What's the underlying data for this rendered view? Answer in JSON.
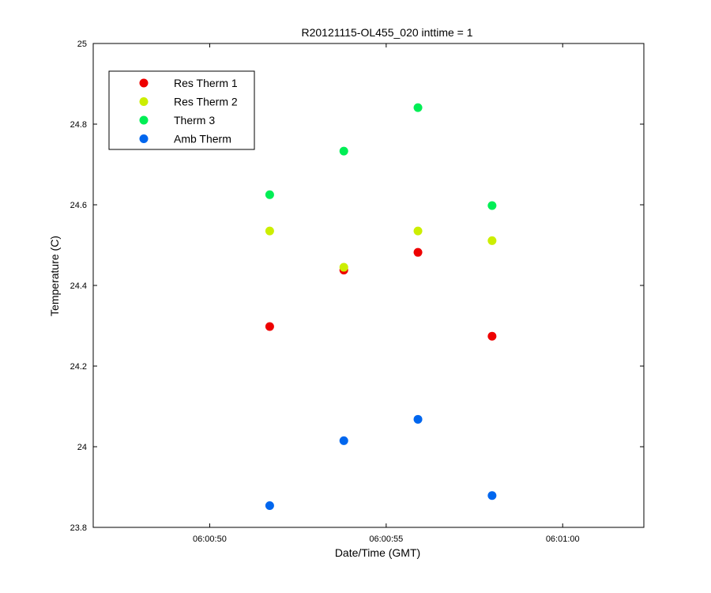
{
  "chart_data": {
    "type": "scatter",
    "title": "R20121115-OL455_020 inttime = 1",
    "xlabel": "Date/Time (GMT)",
    "ylabel": "Temperature (C)",
    "xlim": [
      "06:00:46.7",
      "06:01:02.3"
    ],
    "ylim": [
      23.8,
      25.0
    ],
    "x_ticks": [
      "06:00:50",
      "06:00:55",
      "06:01:00"
    ],
    "y_ticks": [
      23.8,
      24.0,
      24.2,
      24.4,
      24.6,
      24.8,
      25.0
    ],
    "y_tick_labels": [
      "23.8",
      "24",
      "24.2",
      "24.4",
      "24.6",
      "24.8",
      "25"
    ],
    "x": [
      "06:00:51.7",
      "06:00:53.8",
      "06:00:55.9",
      "06:00:58.0"
    ],
    "series": [
      {
        "name": "Res Therm 1",
        "color": "#ee0000",
        "values": [
          24.298,
          24.438,
          24.482,
          24.274
        ]
      },
      {
        "name": "Res Therm 2",
        "color": "#ccee00",
        "values": [
          24.535,
          24.445,
          24.535,
          24.511
        ]
      },
      {
        "name": "Therm 3",
        "color": "#00ee55",
        "values": [
          24.625,
          24.733,
          24.841,
          24.598
        ]
      },
      {
        "name": "Amb Therm",
        "color": "#0066ee",
        "values": [
          23.854,
          24.015,
          24.068,
          23.879
        ]
      }
    ],
    "legend_position": "top-left",
    "grid": false
  }
}
